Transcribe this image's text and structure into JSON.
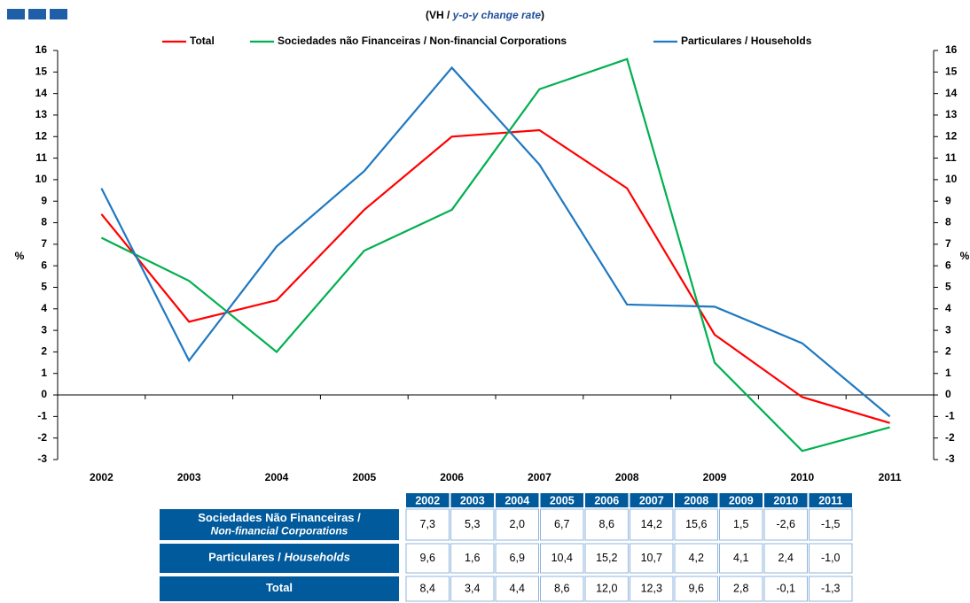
{
  "chart_data": {
    "type": "line",
    "subtitle": {
      "prefix": "(VH / ",
      "emphasis": "y-o-y change rate",
      "suffix": ")"
    },
    "y_label": "%",
    "y2_label": "%",
    "categories": [
      "2002",
      "2003",
      "2004",
      "2005",
      "2006",
      "2007",
      "2008",
      "2009",
      "2010",
      "2011"
    ],
    "series": [
      {
        "name": "Total",
        "color": "#ff0000",
        "values": [
          8.4,
          3.4,
          4.4,
          8.6,
          12.0,
          12.3,
          9.6,
          2.8,
          -0.1,
          -1.3
        ],
        "value_labels": [
          "8,4",
          "3,4",
          "4,4",
          "8,6",
          "12,0",
          "12,3",
          "9,6",
          "2,8",
          "-0,1",
          "-1,3"
        ]
      },
      {
        "name": "Sociedades não Financeiras / Non-financial Corporations",
        "color": "#00b050",
        "values": [
          7.3,
          5.3,
          2.0,
          6.7,
          8.6,
          14.2,
          15.6,
          1.5,
          -2.6,
          -1.5
        ],
        "value_labels": [
          "7,3",
          "5,3",
          "2,0",
          "6,7",
          "8,6",
          "14,2",
          "15,6",
          "1,5",
          "-2,6",
          "-1,5"
        ]
      },
      {
        "name": "Particulares / Households",
        "color": "#1f78c1",
        "values": [
          9.6,
          1.6,
          6.9,
          10.4,
          15.2,
          10.7,
          4.2,
          4.1,
          2.4,
          -1.0
        ],
        "value_labels": [
          "9,6",
          "1,6",
          "6,9",
          "10,4",
          "15,2",
          "10,7",
          "4,2",
          "4,1",
          "2,4",
          "-1,0"
        ]
      }
    ],
    "ylim": [
      -3,
      16
    ],
    "yticks": [
      -3,
      -2,
      -1,
      0,
      1,
      2,
      3,
      4,
      5,
      6,
      7,
      8,
      9,
      10,
      11,
      12,
      13,
      14,
      15,
      16
    ],
    "y2lim": [
      -3,
      16
    ],
    "y2ticks": [
      -3,
      -2,
      -1,
      0,
      1,
      2,
      3,
      4,
      5,
      6,
      7,
      8,
      9,
      10,
      11,
      12,
      13,
      14,
      15,
      16
    ],
    "legend": "top",
    "table": {
      "row_labels": [
        [
          "Sociedades Não Financeiras /",
          "Non-financial Corporations"
        ],
        [
          "Particulares / ",
          "Households"
        ],
        [
          "Total"
        ]
      ]
    }
  }
}
